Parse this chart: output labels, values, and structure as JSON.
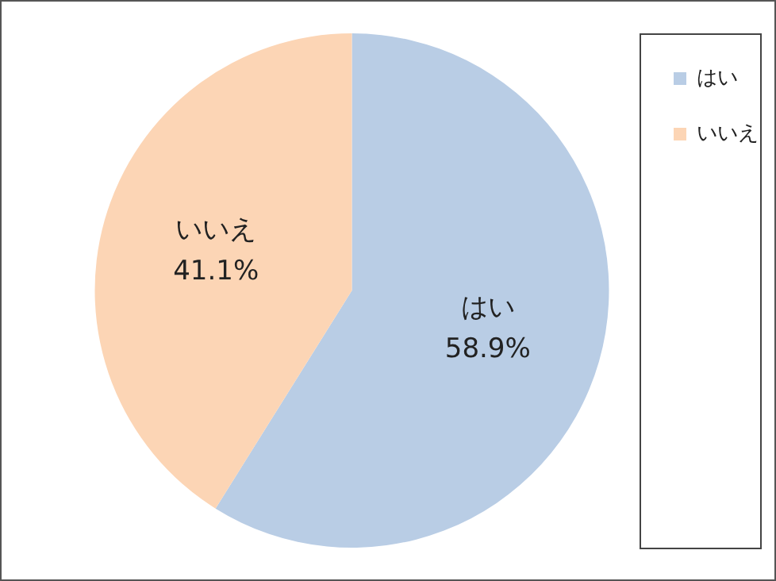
{
  "chart_data": {
    "type": "pie",
    "categories": [
      "はい",
      "いいえ"
    ],
    "values": [
      58.9,
      41.1
    ],
    "colors": [
      "#b9cde5",
      "#fcd5b5"
    ],
    "value_labels": [
      "58.9%",
      "41.1%"
    ],
    "legend": "top right"
  }
}
